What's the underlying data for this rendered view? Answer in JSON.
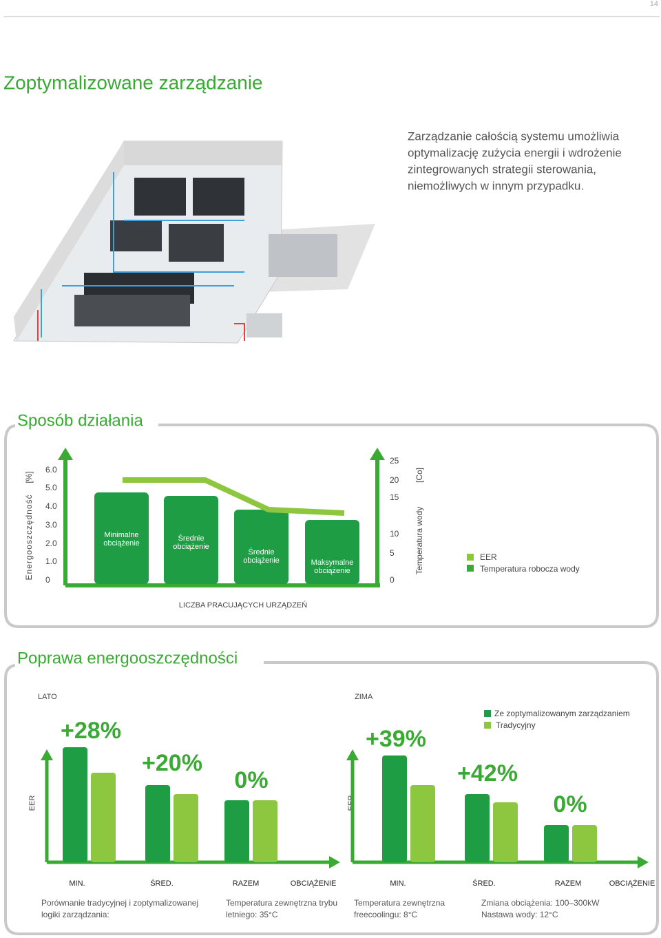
{
  "page_number": "14",
  "header": {
    "title": "Zoptymalizowane zarządzanie",
    "lines": [
      "Zarządzanie całością systemu umożliwia",
      "optymalizację zużycia energii i wdrożenie",
      "zintegrowanych strategii sterowania,",
      "niemożliwych w innym przypadku."
    ]
  },
  "operation": {
    "title": "Sposób działania",
    "left_axis": {
      "label": "Energooszczędność",
      "unit": "[%]",
      "ticks": [
        "6.0",
        "5.0",
        "4.0",
        "3.0",
        "2.0",
        "1.0",
        "0"
      ]
    },
    "right_axis": {
      "label": "Temperatura wody",
      "unit": "[Co]",
      "ticks": [
        "25",
        "20",
        "15",
        "10",
        "5",
        "0"
      ]
    },
    "bars": [
      [
        "Minimalne",
        "obciążenie"
      ],
      [
        "Średnie",
        "obciążenie"
      ],
      [
        "Średnie",
        "obciążenie"
      ],
      [
        "Maksymalne",
        "obciążenie"
      ]
    ],
    "x_label": "LICZBA PRACUJĄCYCH URZĄDZEŃ",
    "legend": [
      "EER",
      "Temperatura robocza wody"
    ]
  },
  "improvement": {
    "title": "Poprawa energooszczędności",
    "panels": [
      {
        "label": "LATO",
        "y_label": "EER",
        "x_label": "OBCIĄŻENIE",
        "groups": [
          {
            "category": "MIN.",
            "value_label": "+28%"
          },
          {
            "category": "ŚRED.",
            "value_label": "+20%"
          },
          {
            "category": "RAZEM",
            "value_label": "0%"
          }
        ]
      },
      {
        "label": "ZIMA",
        "y_label": "EER",
        "x_label": "OBCIĄŻENIE",
        "groups": [
          {
            "category": "MIN.",
            "value_label": "+39%"
          },
          {
            "category": "ŚRED.",
            "value_label": "+42%"
          },
          {
            "category": "RAZEM",
            "value_label": "0%"
          }
        ]
      }
    ],
    "legend": [
      "Ze zoptymalizowanym zarządzaniem",
      "Tradycyjny"
    ],
    "notes": [
      [
        "Porównanie tradycyjnej i zoptymalizowanej",
        "logiki zarządzania:"
      ],
      [
        "Temperatura zewnętrzna trybu",
        "letniego: 35°C"
      ],
      [
        "Temperatura zewnętrzna",
        "freecoolingu: 8°C"
      ],
      [
        "Zmiana obciążenia: 100–300kW",
        "Nastawa wody: 12°C"
      ]
    ]
  }
}
